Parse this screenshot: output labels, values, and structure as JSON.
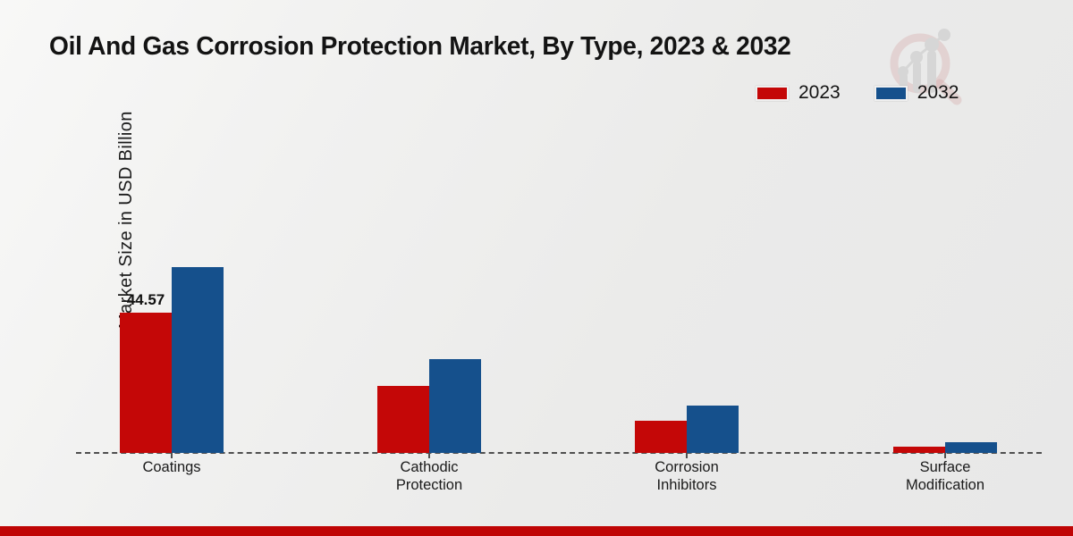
{
  "page": {
    "title": "Oil And Gas Corrosion Protection Market, By Type, 2023 & 2032",
    "ylabel": "Market Size in USD Billion"
  },
  "colors": {
    "series_2023": "#c40707",
    "series_2032": "#15508c",
    "footer_accent": "#bf0505",
    "axis_line": "#4f4f4f",
    "background": "#ececec",
    "text": "#161616"
  },
  "icons": {
    "watermark": "magnifier-bar-chart-logo"
  },
  "legend": {
    "items": [
      {
        "label": "2023",
        "color": "#c40707"
      },
      {
        "label": "2032",
        "color": "#15508c"
      }
    ]
  },
  "chart_data": {
    "type": "bar",
    "title": "Oil And Gas Corrosion Protection Market, By Type, 2023 & 2032",
    "categories": [
      "Coatings",
      "Cathodic Protection",
      "Corrosion Inhibitors",
      "Surface Modification"
    ],
    "series": [
      {
        "name": "2023",
        "color": "#c40707",
        "values": [
          44.57,
          21.3,
          10.2,
          2.0
        ],
        "value_labels": [
          "44.57",
          "",
          "",
          ""
        ]
      },
      {
        "name": "2032",
        "color": "#15508c",
        "values": [
          59.0,
          29.8,
          15.0,
          3.4
        ],
        "value_labels": [
          "",
          "",
          "",
          ""
        ]
      }
    ],
    "xlabel": "",
    "ylabel": "Market Size in USD Billion",
    "ylim": [
      0,
      121
    ],
    "grid": false,
    "y_ticks_visible": false,
    "legend_position": "top-right",
    "baseline_style": "dashed",
    "bar_gap_in_group": 0
  }
}
